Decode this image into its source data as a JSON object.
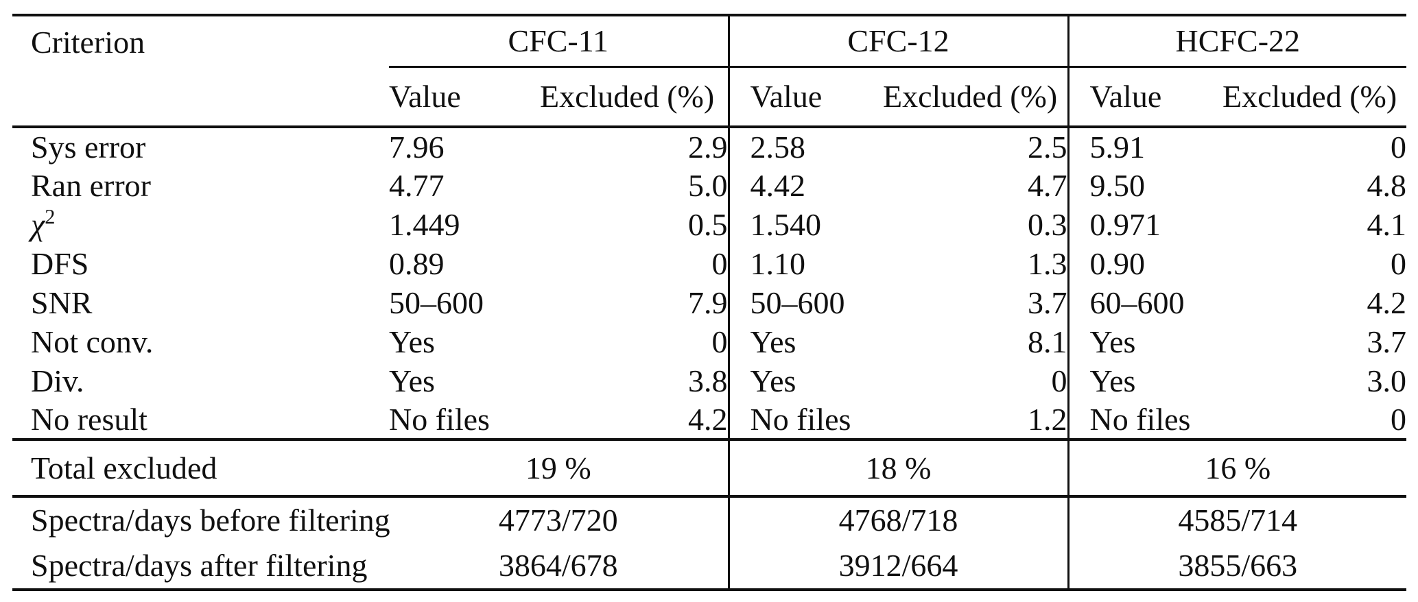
{
  "header": {
    "criterion": "Criterion",
    "groups": [
      "CFC-11",
      "CFC-12",
      "HCFC-22"
    ],
    "sub": {
      "value": "Value",
      "excluded": "Excluded (%)"
    }
  },
  "rows": [
    {
      "label": "Sys error",
      "cells": [
        "7.96",
        "2.9",
        "2.58",
        "2.5",
        "5.91",
        "0"
      ]
    },
    {
      "label": "Ran error",
      "cells": [
        "4.77",
        "5.0",
        "4.42",
        "4.7",
        "9.50",
        "4.8"
      ]
    },
    {
      "label": "χ",
      "label_sup": "2",
      "label_italic": true,
      "cells": [
        "1.449",
        "0.5",
        "1.540",
        "0.3",
        "0.971",
        "4.1"
      ]
    },
    {
      "label": "DFS",
      "cells": [
        "0.89",
        "0",
        "1.10",
        "1.3",
        "0.90",
        "0"
      ]
    },
    {
      "label": "SNR",
      "cells": [
        "50–600",
        "7.9",
        "50–600",
        "3.7",
        "60–600",
        "4.2"
      ]
    },
    {
      "label": "Not conv.",
      "cells": [
        "Yes",
        "0",
        "Yes",
        "8.1",
        "Yes",
        "3.7"
      ]
    },
    {
      "label": "Div.",
      "cells": [
        "Yes",
        "3.8",
        "Yes",
        "0",
        "Yes",
        "3.0"
      ]
    },
    {
      "label": "No result",
      "cells": [
        "No files",
        "4.2",
        "No files",
        "1.2",
        "No files",
        "0"
      ]
    }
  ],
  "summary": {
    "total": {
      "label": "Total excluded",
      "values": [
        "19 %",
        "18 %",
        "16 %"
      ]
    },
    "spectra": [
      {
        "label": "Spectra/days before filtering",
        "values": [
          "4773/720",
          "4768/718",
          "4585/714"
        ]
      },
      {
        "label": "Spectra/days after filtering",
        "values": [
          "3864/678",
          "3912/664",
          "3855/663"
        ]
      }
    ]
  },
  "colors": {
    "ink": "#101010",
    "background": "#ffffff"
  }
}
